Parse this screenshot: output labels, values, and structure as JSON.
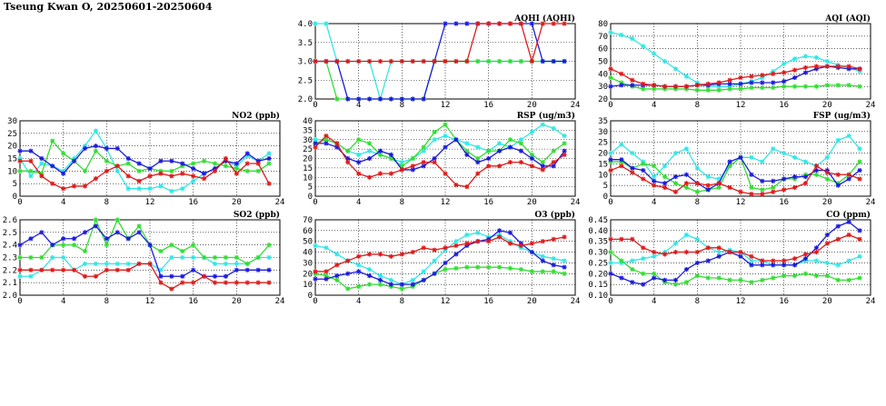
{
  "page": {
    "title": "Tseung Kwan O, 20250601-20250604"
  },
  "colors": {
    "cyan": "#33e6e6",
    "green": "#33dd33",
    "blue": "#1a1add",
    "red": "#dd1a1a"
  },
  "chart_data": [
    {
      "id": "aqhi",
      "type": "line",
      "title": "AQHI (AQHI)",
      "xlim": [
        0,
        24
      ],
      "ylim": [
        2.0,
        4.0
      ],
      "xticks": [
        "0",
        "4",
        "8",
        "12",
        "16",
        "20",
        "24"
      ],
      "yticks": [
        "2.0",
        "2.5",
        "3.0",
        "3.5",
        "4.0"
      ],
      "series": [
        {
          "color": "cyan",
          "values": [
            4,
            4,
            3,
            3,
            3,
            3,
            2,
            3,
            3,
            3,
            3,
            3,
            3,
            3,
            3,
            3,
            3,
            3,
            3,
            3,
            3,
            3,
            3,
            3
          ]
        },
        {
          "color": "green",
          "values": [
            3,
            3,
            2,
            2,
            2,
            2,
            2,
            2,
            2,
            2,
            2,
            3,
            3,
            3,
            3,
            3,
            3,
            3,
            3,
            3,
            3,
            3,
            3,
            3
          ]
        },
        {
          "color": "blue",
          "values": [
            3,
            3,
            3,
            2,
            2,
            2,
            2,
            2,
            2,
            2,
            2,
            3,
            4,
            4,
            4,
            4,
            4,
            4,
            4,
            4,
            4,
            3,
            3,
            3
          ]
        },
        {
          "color": "red",
          "values": [
            3,
            3,
            3,
            3,
            3,
            3,
            3,
            3,
            3,
            3,
            3,
            3,
            3,
            3,
            3,
            4,
            4,
            4,
            4,
            4,
            3,
            4,
            4,
            4
          ]
        }
      ]
    },
    {
      "id": "aqi",
      "type": "line",
      "title": "AQI (AQI)",
      "xlim": [
        0,
        24
      ],
      "ylim": [
        20,
        80
      ],
      "xticks": [
        "0",
        "4",
        "8",
        "12",
        "16",
        "20",
        "24"
      ],
      "yticks": [
        "20",
        "30",
        "40",
        "50",
        "60",
        "70",
        "80"
      ],
      "series": [
        {
          "color": "cyan",
          "values": [
            73,
            71,
            68,
            62,
            56,
            50,
            44,
            38,
            33,
            30,
            30,
            30,
            32,
            34,
            37,
            42,
            48,
            52,
            54,
            53,
            50,
            47,
            45,
            42
          ]
        },
        {
          "color": "green",
          "values": [
            37,
            33,
            30,
            28,
            28,
            28,
            28,
            28,
            27,
            27,
            27,
            28,
            28,
            29,
            29,
            29,
            30,
            30,
            30,
            30,
            31,
            31,
            31,
            30
          ]
        },
        {
          "color": "blue",
          "values": [
            30,
            31,
            31,
            31,
            31,
            30,
            30,
            30,
            31,
            31,
            32,
            32,
            32,
            33,
            33,
            33,
            34,
            37,
            41,
            44,
            46,
            45,
            44,
            44
          ]
        },
        {
          "color": "red",
          "values": [
            44,
            40,
            35,
            32,
            31,
            30,
            30,
            30,
            31,
            32,
            33,
            35,
            37,
            38,
            39,
            40,
            41,
            43,
            45,
            46,
            46,
            46,
            46,
            44
          ]
        }
      ]
    },
    {
      "id": "no2",
      "type": "line",
      "title": "NO2 (ppb)",
      "xlim": [
        0,
        24
      ],
      "ylim": [
        0,
        30
      ],
      "xticks": [
        "0",
        "4",
        "8",
        "12",
        "16",
        "20",
        "24"
      ],
      "yticks": [
        "0",
        "5",
        "10",
        "15",
        "20",
        "25",
        "30"
      ],
      "series": [
        {
          "color": "cyan",
          "values": [
            15,
            8,
            13,
            12,
            10,
            15,
            20,
            26,
            19,
            10,
            3,
            3,
            3,
            4,
            2,
            3,
            6,
            9,
            11,
            14,
            12,
            16,
            14,
            17
          ]
        },
        {
          "color": "green",
          "values": [
            10,
            10,
            9,
            22,
            17,
            14,
            10,
            18,
            14,
            12,
            13,
            10,
            11,
            10,
            10,
            12,
            13,
            14,
            13,
            12,
            11,
            10,
            10,
            13
          ]
        },
        {
          "color": "blue",
          "values": [
            18,
            18,
            15,
            12,
            9,
            14,
            19,
            20,
            19,
            19,
            15,
            13,
            11,
            14,
            14,
            13,
            11,
            9,
            11,
            14,
            13,
            17,
            14,
            15
          ]
        },
        {
          "color": "red",
          "values": [
            14,
            14,
            8,
            5,
            3,
            4,
            4,
            7,
            10,
            12,
            8,
            6,
            8,
            9,
            8,
            9,
            8,
            7,
            10,
            15,
            9,
            13,
            13,
            5
          ]
        }
      ]
    },
    {
      "id": "rsp",
      "type": "line",
      "title": "RSP (ug/m3)",
      "xlim": [
        0,
        24
      ],
      "ylim": [
        0,
        40
      ],
      "xticks": [
        "0",
        "4",
        "8",
        "12",
        "16",
        "20",
        "24"
      ],
      "yticks": [
        "0",
        "5",
        "10",
        "15",
        "20",
        "25",
        "30",
        "35",
        "40"
      ],
      "series": [
        {
          "color": "cyan",
          "values": [
            30,
            30,
            28,
            24,
            22,
            24,
            22,
            20,
            18,
            20,
            24,
            30,
            32,
            30,
            28,
            26,
            24,
            28,
            26,
            30,
            34,
            38,
            36,
            32
          ]
        },
        {
          "color": "green",
          "values": [
            28,
            30,
            28,
            24,
            30,
            28,
            22,
            20,
            16,
            20,
            26,
            34,
            38,
            30,
            24,
            20,
            24,
            24,
            30,
            28,
            22,
            18,
            24,
            28
          ]
        },
        {
          "color": "blue",
          "values": [
            28,
            28,
            26,
            20,
            18,
            20,
            24,
            22,
            14,
            14,
            16,
            20,
            26,
            30,
            22,
            18,
            20,
            24,
            26,
            24,
            20,
            16,
            16,
            24
          ]
        },
        {
          "color": "red",
          "values": [
            26,
            32,
            28,
            18,
            12,
            10,
            12,
            12,
            14,
            16,
            18,
            18,
            12,
            6,
            5,
            12,
            16,
            16,
            18,
            18,
            16,
            14,
            18,
            22
          ]
        }
      ]
    },
    {
      "id": "fsp",
      "type": "line",
      "title": "FSP (ug/m3)",
      "xlim": [
        0,
        24
      ],
      "ylim": [
        0,
        35
      ],
      "xticks": [
        "0",
        "4",
        "8",
        "12",
        "16",
        "20",
        "24"
      ],
      "yticks": [
        "0",
        "5",
        "10",
        "15",
        "20",
        "25",
        "30",
        "35"
      ],
      "series": [
        {
          "color": "cyan",
          "values": [
            20,
            24,
            20,
            16,
            9,
            14,
            20,
            22,
            13,
            9,
            8,
            14,
            18,
            18,
            16,
            22,
            20,
            18,
            16,
            14,
            18,
            26,
            28,
            22
          ]
        },
        {
          "color": "green",
          "values": [
            16,
            16,
            13,
            15,
            14,
            9,
            6,
            4,
            2,
            3,
            4,
            14,
            18,
            4,
            3,
            4,
            8,
            8,
            10,
            10,
            8,
            6,
            10,
            16
          ]
        },
        {
          "color": "blue",
          "values": [
            17,
            17,
            13,
            12,
            7,
            6,
            9,
            10,
            6,
            3,
            6,
            16,
            18,
            10,
            7,
            7,
            8,
            9,
            9,
            12,
            12,
            5,
            8,
            12
          ]
        },
        {
          "color": "red",
          "values": [
            12,
            14,
            11,
            8,
            5,
            4,
            2,
            6,
            6,
            5,
            6,
            4,
            2,
            1,
            1,
            2,
            3,
            4,
            6,
            14,
            11,
            10,
            10,
            8
          ]
        }
      ]
    },
    {
      "id": "so2",
      "type": "line",
      "title": "SO2 (ppb)",
      "xlim": [
        0,
        24
      ],
      "ylim": [
        2.0,
        2.6
      ],
      "xticks": [
        "0",
        "4",
        "8",
        "12",
        "16",
        "20",
        "24"
      ],
      "yticks": [
        "2.0",
        "2.1",
        "2.2",
        "2.3",
        "2.4",
        "2.5",
        "2.6"
      ],
      "series": [
        {
          "color": "cyan",
          "values": [
            2.15,
            2.15,
            2.2,
            2.3,
            2.3,
            2.2,
            2.25,
            2.25,
            2.25,
            2.25,
            2.25,
            2.25,
            2.25,
            2.2,
            2.3,
            2.3,
            2.3,
            2.3,
            2.25,
            2.25,
            2.25,
            2.25,
            2.3,
            2.3
          ]
        },
        {
          "color": "green",
          "values": [
            2.3,
            2.3,
            2.3,
            2.4,
            2.4,
            2.4,
            2.35,
            2.6,
            2.4,
            2.6,
            2.45,
            2.55,
            2.4,
            2.35,
            2.4,
            2.35,
            2.4,
            2.3,
            2.3,
            2.3,
            2.3,
            2.25,
            2.3,
            2.4
          ]
        },
        {
          "color": "blue",
          "values": [
            2.4,
            2.45,
            2.5,
            2.4,
            2.45,
            2.45,
            2.5,
            2.55,
            2.45,
            2.5,
            2.45,
            2.5,
            2.4,
            2.15,
            2.15,
            2.15,
            2.2,
            2.15,
            2.15,
            2.15,
            2.2,
            2.2,
            2.2,
            2.2
          ]
        },
        {
          "color": "red",
          "values": [
            2.2,
            2.2,
            2.2,
            2.2,
            2.2,
            2.2,
            2.15,
            2.15,
            2.2,
            2.2,
            2.2,
            2.25,
            2.25,
            2.1,
            2.05,
            2.1,
            2.1,
            2.15,
            2.1,
            2.1,
            2.1,
            2.1,
            2.1,
            2.1
          ]
        }
      ]
    },
    {
      "id": "o3",
      "type": "line",
      "title": "O3 (ppb)",
      "xlim": [
        0,
        24
      ],
      "ylim": [
        0,
        70
      ],
      "xticks": [
        "0",
        "4",
        "8",
        "12",
        "16",
        "20",
        "24"
      ],
      "yticks": [
        "0",
        "10",
        "20",
        "30",
        "40",
        "50",
        "60",
        "70"
      ],
      "series": [
        {
          "color": "cyan",
          "values": [
            46,
            44,
            38,
            32,
            28,
            24,
            18,
            14,
            10,
            14,
            22,
            32,
            42,
            50,
            56,
            58,
            54,
            56,
            50,
            44,
            40,
            36,
            34,
            32
          ]
        },
        {
          "color": "green",
          "values": [
            20,
            18,
            14,
            6,
            8,
            10,
            10,
            8,
            6,
            8,
            14,
            20,
            24,
            25,
            26,
            26,
            26,
            26,
            25,
            24,
            22,
            22,
            22,
            20
          ]
        },
        {
          "color": "blue",
          "values": [
            15,
            15,
            18,
            20,
            22,
            18,
            14,
            10,
            10,
            10,
            14,
            20,
            30,
            38,
            46,
            50,
            52,
            60,
            58,
            48,
            40,
            32,
            28,
            26
          ]
        },
        {
          "color": "red",
          "values": [
            22,
            22,
            28,
            32,
            36,
            38,
            38,
            36,
            38,
            40,
            44,
            42,
            44,
            46,
            48,
            50,
            50,
            54,
            48,
            46,
            48,
            50,
            52,
            54
          ]
        }
      ]
    },
    {
      "id": "co",
      "type": "line",
      "title": "CO (ppm)",
      "xlim": [
        0,
        24
      ],
      "ylim": [
        0.1,
        0.45
      ],
      "xticks": [
        "0",
        "4",
        "8",
        "12",
        "16",
        "20",
        "24"
      ],
      "yticks": [
        "0.10",
        "0.15",
        "0.20",
        "0.25",
        "0.30",
        "0.35",
        "0.40",
        "0.45"
      ],
      "series": [
        {
          "color": "cyan",
          "values": [
            0.25,
            0.25,
            0.26,
            0.27,
            0.28,
            0.3,
            0.34,
            0.38,
            0.36,
            0.32,
            0.3,
            0.31,
            0.3,
            0.26,
            0.26,
            0.24,
            0.24,
            0.24,
            0.26,
            0.26,
            0.25,
            0.24,
            0.26,
            0.28
          ]
        },
        {
          "color": "green",
          "values": [
            0.3,
            0.26,
            0.22,
            0.2,
            0.2,
            0.16,
            0.15,
            0.16,
            0.19,
            0.18,
            0.18,
            0.17,
            0.17,
            0.16,
            0.17,
            0.18,
            0.19,
            0.19,
            0.2,
            0.19,
            0.19,
            0.17,
            0.17,
            0.18
          ]
        },
        {
          "color": "blue",
          "values": [
            0.2,
            0.18,
            0.16,
            0.15,
            0.18,
            0.17,
            0.17,
            0.22,
            0.25,
            0.26,
            0.28,
            0.3,
            0.28,
            0.24,
            0.24,
            0.24,
            0.24,
            0.24,
            0.27,
            0.32,
            0.38,
            0.42,
            0.44,
            0.4
          ]
        },
        {
          "color": "red",
          "values": [
            0.36,
            0.36,
            0.36,
            0.32,
            0.3,
            0.29,
            0.3,
            0.3,
            0.3,
            0.32,
            0.32,
            0.3,
            0.3,
            0.28,
            0.26,
            0.26,
            0.26,
            0.27,
            0.29,
            0.3,
            0.34,
            0.36,
            0.38,
            0.36
          ]
        }
      ]
    }
  ]
}
